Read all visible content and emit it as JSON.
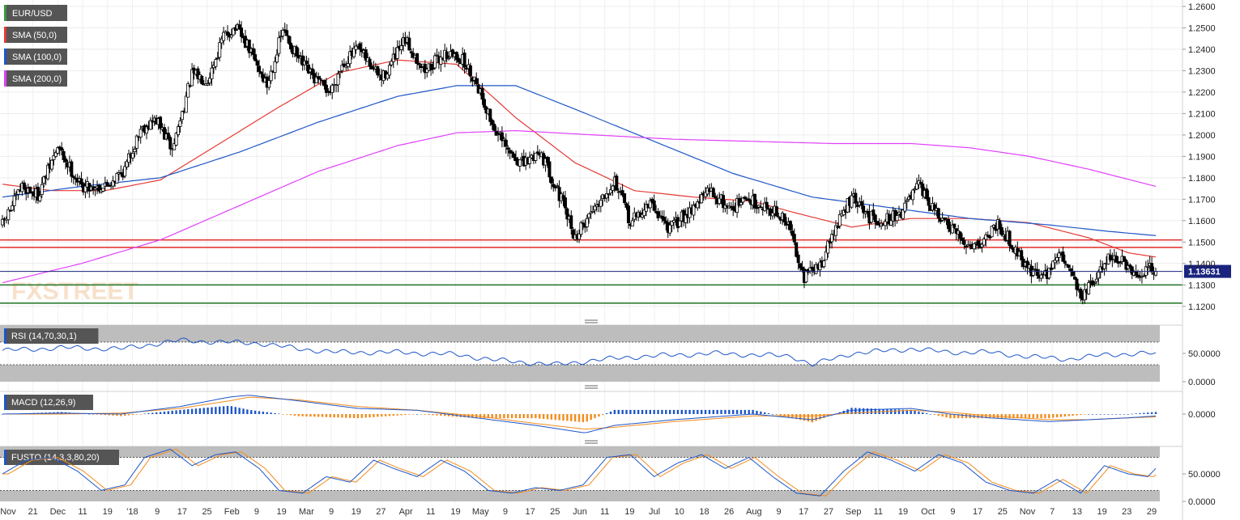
{
  "chart_data": {
    "type": "candlestick",
    "symbol": "EUR/USD",
    "legend": [
      {
        "label": "EUR/USD",
        "color": "#3a9a3a"
      },
      {
        "label": "SMA (50,0)",
        "color": "#e53935"
      },
      {
        "label": "SMA (100,0)",
        "color": "#1e56c8"
      },
      {
        "label": "SMA (200,0)",
        "color": "#e040fb"
      }
    ],
    "price_axis": {
      "ylim": [
        1.115,
        1.263
      ],
      "ticks": [
        1.12,
        1.13,
        1.14,
        1.15,
        1.16,
        1.17,
        1.18,
        1.19,
        1.2,
        1.21,
        1.22,
        1.23,
        1.24,
        1.25,
        1.26
      ],
      "tick_labels": [
        "1.1200",
        "1.1300",
        "1.1400",
        "1.1500",
        "1.1600",
        "1.1700",
        "1.1800",
        "1.1900",
        "1.2000",
        "1.2100",
        "1.2200",
        "1.2300",
        "1.2400",
        "1.2500",
        "1.2600"
      ]
    },
    "last_price": {
      "value": 1.1363,
      "label": "1.13631",
      "color": "#1a237e"
    },
    "horizontal_levels": [
      {
        "value": 1.151,
        "color": "#e53935"
      },
      {
        "value": 1.1475,
        "color": "#e53935"
      },
      {
        "value": 1.13,
        "color": "#2e7d32"
      },
      {
        "value": 1.1215,
        "color": "#2e7d32"
      }
    ],
    "x_axis_labels": [
      "Nov",
      "21",
      "Dec",
      "11",
      "19",
      "'18",
      "9",
      "17",
      "25",
      "Feb",
      "9",
      "19",
      "Mar",
      "9",
      "19",
      "27",
      "Apr",
      "11",
      "19",
      "May",
      "9",
      "17",
      "25",
      "Jun",
      "11",
      "19",
      "Jul",
      "10",
      "18",
      "26",
      "Aug",
      "9",
      "17",
      "27",
      "Sep",
      "11",
      "19",
      "Oct",
      "9",
      "17",
      "25",
      "Nov",
      "7",
      "13",
      "19",
      "23",
      "29"
    ],
    "price_keypoints": [
      {
        "t": 0,
        "p": 1.158
      },
      {
        "t": 10,
        "p": 1.176
      },
      {
        "t": 18,
        "p": 1.172
      },
      {
        "t": 28,
        "p": 1.194
      },
      {
        "t": 40,
        "p": 1.176
      },
      {
        "t": 52,
        "p": 1.176
      },
      {
        "t": 62,
        "p": 1.184
      },
      {
        "t": 70,
        "p": 1.203
      },
      {
        "t": 78,
        "p": 1.207
      },
      {
        "t": 86,
        "p": 1.193
      },
      {
        "t": 96,
        "p": 1.228
      },
      {
        "t": 104,
        "p": 1.226
      },
      {
        "t": 112,
        "p": 1.246
      },
      {
        "t": 118,
        "p": 1.25
      },
      {
        "t": 125,
        "p": 1.24
      },
      {
        "t": 134,
        "p": 1.223
      },
      {
        "t": 142,
        "p": 1.249
      },
      {
        "t": 150,
        "p": 1.235
      },
      {
        "t": 158,
        "p": 1.226
      },
      {
        "t": 166,
        "p": 1.22
      },
      {
        "t": 172,
        "p": 1.233
      },
      {
        "t": 180,
        "p": 1.24
      },
      {
        "t": 192,
        "p": 1.226
      },
      {
        "t": 204,
        "p": 1.244
      },
      {
        "t": 214,
        "p": 1.23
      },
      {
        "t": 224,
        "p": 1.238
      },
      {
        "t": 232,
        "p": 1.236
      },
      {
        "t": 240,
        "p": 1.225
      },
      {
        "t": 248,
        "p": 1.205
      },
      {
        "t": 256,
        "p": 1.192
      },
      {
        "t": 264,
        "p": 1.186
      },
      {
        "t": 272,
        "p": 1.193
      },
      {
        "t": 282,
        "p": 1.172
      },
      {
        "t": 290,
        "p": 1.152
      },
      {
        "t": 300,
        "p": 1.167
      },
      {
        "t": 310,
        "p": 1.179
      },
      {
        "t": 318,
        "p": 1.159
      },
      {
        "t": 328,
        "p": 1.168
      },
      {
        "t": 338,
        "p": 1.156
      },
      {
        "t": 348,
        "p": 1.165
      },
      {
        "t": 358,
        "p": 1.174
      },
      {
        "t": 368,
        "p": 1.166
      },
      {
        "t": 378,
        "p": 1.17
      },
      {
        "t": 390,
        "p": 1.165
      },
      {
        "t": 398,
        "p": 1.158
      },
      {
        "t": 406,
        "p": 1.134
      },
      {
        "t": 414,
        "p": 1.139
      },
      {
        "t": 422,
        "p": 1.157
      },
      {
        "t": 430,
        "p": 1.171
      },
      {
        "t": 438,
        "p": 1.162
      },
      {
        "t": 446,
        "p": 1.16
      },
      {
        "t": 454,
        "p": 1.163
      },
      {
        "t": 464,
        "p": 1.176
      },
      {
        "t": 472,
        "p": 1.164
      },
      {
        "t": 480,
        "p": 1.156
      },
      {
        "t": 488,
        "p": 1.149
      },
      {
        "t": 496,
        "p": 1.15
      },
      {
        "t": 504,
        "p": 1.159
      },
      {
        "t": 512,
        "p": 1.148
      },
      {
        "t": 520,
        "p": 1.137
      },
      {
        "t": 528,
        "p": 1.134
      },
      {
        "t": 534,
        "p": 1.144
      },
      {
        "t": 540,
        "p": 1.14
      },
      {
        "t": 546,
        "p": 1.124
      },
      {
        "t": 554,
        "p": 1.133
      },
      {
        "t": 560,
        "p": 1.144
      },
      {
        "t": 568,
        "p": 1.14
      },
      {
        "t": 574,
        "p": 1.132
      },
      {
        "t": 580,
        "p": 1.138
      },
      {
        "t": 584,
        "p": 1.1363
      }
    ],
    "sma": [
      {
        "name": "SMA (50,0)",
        "color": "#e53935",
        "points": [
          [
            0,
            1.177
          ],
          [
            25,
            1.174
          ],
          [
            52,
            1.174
          ],
          [
            80,
            1.179
          ],
          [
            110,
            1.196
          ],
          [
            140,
            1.213
          ],
          [
            170,
            1.229
          ],
          [
            200,
            1.235
          ],
          [
            230,
            1.233
          ],
          [
            260,
            1.208
          ],
          [
            290,
            1.187
          ],
          [
            320,
            1.174
          ],
          [
            350,
            1.171
          ],
          [
            380,
            1.169
          ],
          [
            400,
            1.164
          ],
          [
            430,
            1.157
          ],
          [
            460,
            1.161
          ],
          [
            490,
            1.161
          ],
          [
            520,
            1.159
          ],
          [
            550,
            1.152
          ],
          [
            570,
            1.145
          ],
          [
            584,
            1.143
          ]
        ]
      },
      {
        "name": "SMA (100,0)",
        "color": "#1e56c8",
        "points": [
          [
            0,
            1.171
          ],
          [
            40,
            1.176
          ],
          [
            80,
            1.18
          ],
          [
            120,
            1.192
          ],
          [
            160,
            1.206
          ],
          [
            200,
            1.218
          ],
          [
            230,
            1.223
          ],
          [
            260,
            1.223
          ],
          [
            290,
            1.212
          ],
          [
            330,
            1.197
          ],
          [
            370,
            1.182
          ],
          [
            410,
            1.171
          ],
          [
            450,
            1.166
          ],
          [
            490,
            1.161
          ],
          [
            530,
            1.158
          ],
          [
            560,
            1.155
          ],
          [
            584,
            1.153
          ]
        ]
      },
      {
        "name": "SMA (200,0)",
        "color": "#e040fb",
        "points": [
          [
            0,
            1.131
          ],
          [
            40,
            1.14
          ],
          [
            80,
            1.151
          ],
          [
            120,
            1.167
          ],
          [
            160,
            1.183
          ],
          [
            200,
            1.195
          ],
          [
            230,
            1.201
          ],
          [
            260,
            1.202
          ],
          [
            300,
            1.2
          ],
          [
            340,
            1.198
          ],
          [
            380,
            1.197
          ],
          [
            420,
            1.196
          ],
          [
            460,
            1.196
          ],
          [
            490,
            1.194
          ],
          [
            520,
            1.19
          ],
          [
            550,
            1.184
          ],
          [
            584,
            1.176
          ]
        ]
      }
    ],
    "rsi": {
      "label": "RSI (14,70,30,1)",
      "ylim": [
        0,
        100
      ],
      "overbought": 70,
      "oversold": 30,
      "ticks": [
        0,
        50
      ],
      "tick_labels": [
        "0.0000",
        "50.0000"
      ],
      "keypoints": [
        [
          0,
          55
        ],
        [
          30,
          60
        ],
        [
          60,
          58
        ],
        [
          90,
          73
        ],
        [
          110,
          70
        ],
        [
          130,
          68
        ],
        [
          150,
          58
        ],
        [
          170,
          52
        ],
        [
          200,
          52
        ],
        [
          230,
          48
        ],
        [
          250,
          38
        ],
        [
          280,
          30
        ],
        [
          300,
          38
        ],
        [
          320,
          44
        ],
        [
          360,
          50
        ],
        [
          400,
          45
        ],
        [
          410,
          30
        ],
        [
          430,
          50
        ],
        [
          460,
          58
        ],
        [
          480,
          52
        ],
        [
          500,
          52
        ],
        [
          520,
          44
        ],
        [
          540,
          40
        ],
        [
          560,
          48
        ],
        [
          580,
          50
        ],
        [
          584,
          49
        ]
      ]
    },
    "macd": {
      "label": "MACD (12,26,9)",
      "ticks": [
        0
      ],
      "tick_labels": [
        "0.0000"
      ],
      "ylim": [
        -0.012,
        0.012
      ],
      "keypoints_macd": [
        [
          0,
          0
        ],
        [
          30,
          0.0005
        ],
        [
          60,
          0
        ],
        [
          90,
          0.004
        ],
        [
          115,
          0.009
        ],
        [
          125,
          0.01
        ],
        [
          150,
          0.007
        ],
        [
          180,
          0.003
        ],
        [
          210,
          0.002
        ],
        [
          240,
          -0.002
        ],
        [
          270,
          -0.006
        ],
        [
          295,
          -0.01
        ],
        [
          310,
          -0.006
        ],
        [
          340,
          -0.003
        ],
        [
          380,
          0
        ],
        [
          410,
          -0.003
        ],
        [
          430,
          0.002
        ],
        [
          460,
          0.003
        ],
        [
          480,
          0
        ],
        [
          500,
          -0.002
        ],
        [
          530,
          -0.004
        ],
        [
          550,
          -0.003
        ],
        [
          570,
          -0.002
        ],
        [
          584,
          -0.001
        ]
      ],
      "keypoints_signal": [
        [
          0,
          0
        ],
        [
          30,
          0
        ],
        [
          60,
          0.0005
        ],
        [
          90,
          0.003
        ],
        [
          115,
          0.007
        ],
        [
          125,
          0.009
        ],
        [
          150,
          0.0075
        ],
        [
          180,
          0.004
        ],
        [
          210,
          0.002
        ],
        [
          240,
          -0.001
        ],
        [
          270,
          -0.005
        ],
        [
          295,
          -0.008
        ],
        [
          310,
          -0.007
        ],
        [
          340,
          -0.004
        ],
        [
          380,
          -0.001
        ],
        [
          410,
          -0.001
        ],
        [
          430,
          0.0005
        ],
        [
          460,
          0.002
        ],
        [
          480,
          0.001
        ],
        [
          500,
          -0.001
        ],
        [
          530,
          -0.003
        ],
        [
          550,
          -0.003
        ],
        [
          570,
          -0.002
        ],
        [
          584,
          -0.0015
        ]
      ]
    },
    "fusto": {
      "label": "FUSTO (14,3,3,80,20)",
      "ylim": [
        0,
        100
      ],
      "overbought": 80,
      "oversold": 20,
      "ticks": [
        0,
        50
      ],
      "tick_labels": [
        "0.0000",
        "50.0000"
      ],
      "keypoints": [
        [
          0,
          50
        ],
        [
          12,
          75
        ],
        [
          25,
          80
        ],
        [
          38,
          55
        ],
        [
          50,
          20
        ],
        [
          62,
          30
        ],
        [
          72,
          80
        ],
        [
          85,
          95
        ],
        [
          96,
          65
        ],
        [
          108,
          85
        ],
        [
          118,
          90
        ],
        [
          130,
          60
        ],
        [
          140,
          20
        ],
        [
          152,
          15
        ],
        [
          164,
          45
        ],
        [
          176,
          35
        ],
        [
          188,
          75
        ],
        [
          198,
          60
        ],
        [
          210,
          45
        ],
        [
          222,
          75
        ],
        [
          234,
          55
        ],
        [
          246,
          20
        ],
        [
          258,
          15
        ],
        [
          270,
          25
        ],
        [
          282,
          20
        ],
        [
          294,
          30
        ],
        [
          306,
          80
        ],
        [
          318,
          85
        ],
        [
          330,
          45
        ],
        [
          342,
          70
        ],
        [
          354,
          85
        ],
        [
          366,
          60
        ],
        [
          378,
          80
        ],
        [
          390,
          45
        ],
        [
          402,
          15
        ],
        [
          414,
          10
        ],
        [
          426,
          55
        ],
        [
          438,
          90
        ],
        [
          450,
          75
        ],
        [
          462,
          55
        ],
        [
          474,
          85
        ],
        [
          486,
          70
        ],
        [
          498,
          35
        ],
        [
          510,
          20
        ],
        [
          522,
          15
        ],
        [
          534,
          40
        ],
        [
          546,
          15
        ],
        [
          558,
          65
        ],
        [
          570,
          50
        ],
        [
          580,
          45
        ],
        [
          584,
          60
        ]
      ]
    },
    "brand_watermark": "FXSTREET"
  }
}
